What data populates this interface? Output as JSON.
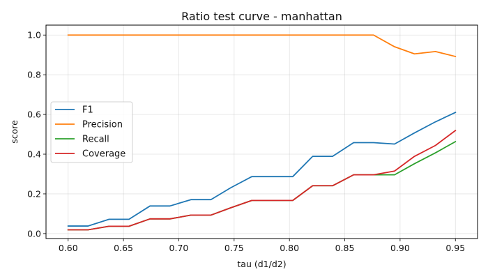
{
  "chart_data": {
    "type": "line",
    "title": "Ratio test curve - manhattan",
    "xlabel": "tau (d1/d2)",
    "ylabel": "score",
    "xlim": [
      0.58,
      0.97
    ],
    "ylim": [
      -0.025,
      1.05
    ],
    "xticks": [
      0.6,
      0.65,
      0.7,
      0.75,
      0.8,
      0.85,
      0.9,
      0.95
    ],
    "yticks": [
      0.0,
      0.2,
      0.4,
      0.6,
      0.8,
      1.0
    ],
    "grid": true,
    "legend_position": "center-left",
    "x": [
      0.6,
      0.618,
      0.637,
      0.655,
      0.674,
      0.692,
      0.711,
      0.729,
      0.747,
      0.766,
      0.784,
      0.803,
      0.821,
      0.839,
      0.858,
      0.876,
      0.895,
      0.913,
      0.932,
      0.95
    ],
    "series": [
      {
        "name": "F1",
        "color": "#1f77b4",
        "values": [
          0.038,
          0.038,
          0.072,
          0.072,
          0.139,
          0.139,
          0.171,
          0.171,
          0.231,
          0.287,
          0.287,
          0.287,
          0.389,
          0.389,
          0.458,
          0.458,
          0.451,
          0.507,
          0.563,
          0.61
        ]
      },
      {
        "name": "Precision",
        "color": "#ff7f0e",
        "values": [
          1.0,
          1.0,
          1.0,
          1.0,
          1.0,
          1.0,
          1.0,
          1.0,
          1.0,
          1.0,
          1.0,
          1.0,
          1.0,
          1.0,
          1.0,
          1.0,
          0.941,
          0.905,
          0.917,
          0.892
        ]
      },
      {
        "name": "Recall",
        "color": "#2ca02c",
        "values": [
          0.019,
          0.019,
          0.037,
          0.037,
          0.074,
          0.074,
          0.093,
          0.093,
          0.13,
          0.167,
          0.167,
          0.167,
          0.241,
          0.241,
          0.296,
          0.296,
          0.296,
          0.352,
          0.407,
          0.463
        ]
      },
      {
        "name": "Coverage",
        "color": "#d62728",
        "values": [
          0.019,
          0.019,
          0.037,
          0.037,
          0.074,
          0.074,
          0.093,
          0.093,
          0.13,
          0.167,
          0.167,
          0.167,
          0.241,
          0.241,
          0.296,
          0.296,
          0.315,
          0.389,
          0.444,
          0.519
        ]
      }
    ]
  }
}
